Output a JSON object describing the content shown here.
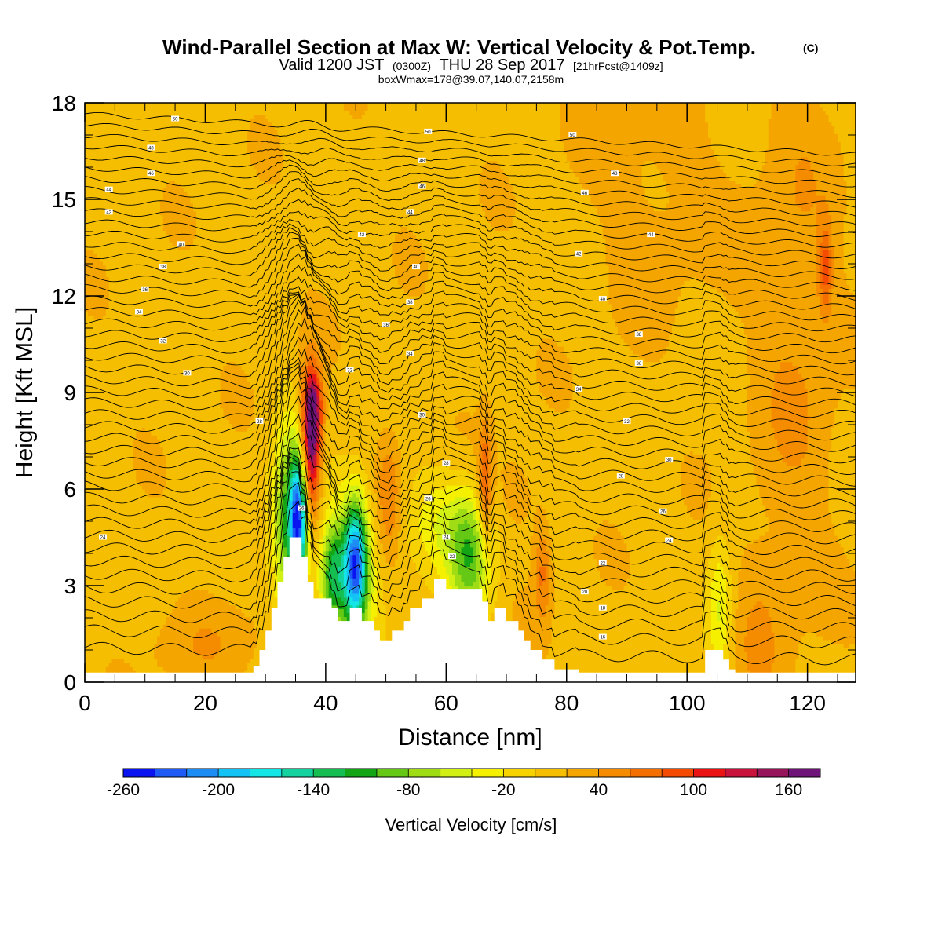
{
  "header": {
    "title": "Wind-Parallel Section at Max W: Vertical Velocity & Pot.Temp.",
    "copyright": "(C)",
    "valid_prefix": "Valid 1200 JST",
    "valid_utc": "(0300Z)",
    "valid_date": "THU 28 Sep 2017",
    "forecast_info": "[21hrFcst@1409z]",
    "box_info": "boxWmax=178@39.07,140.07,2158m"
  },
  "chart_data": {
    "type": "heatmap",
    "title": "Wind-Parallel Section at Max W: Vertical Velocity & Pot.Temp.",
    "xlabel": "Distance [nm]",
    "ylabel": "Height [Kft MSL]",
    "xlim": [
      0,
      128
    ],
    "ylim": [
      0,
      18
    ],
    "x_ticks": [
      0,
      20,
      40,
      60,
      80,
      100,
      120
    ],
    "y_ticks": [
      0,
      3,
      6,
      9,
      12,
      15,
      18
    ],
    "colorbar": {
      "title": "Vertical Velocity [cm/s]",
      "levels": [
        -260,
        -240,
        -220,
        -200,
        -180,
        -160,
        -140,
        -120,
        -100,
        -80,
        -60,
        -40,
        -20,
        0,
        20,
        40,
        60,
        80,
        100,
        120,
        140,
        160,
        180
      ],
      "tick_labels": [
        "-260",
        "-200",
        "-140",
        "-80",
        "-20",
        "40",
        "100",
        "160"
      ],
      "colors": [
        "#0a14f0",
        "#1e5af5",
        "#1e8cf5",
        "#14c3f5",
        "#14e6e6",
        "#14d2a0",
        "#14be50",
        "#14a514",
        "#64c814",
        "#a0dc14",
        "#d2f014",
        "#f5f000",
        "#f5d200",
        "#f5be00",
        "#f5a500",
        "#f58c00",
        "#f56e00",
        "#f54b00",
        "#eb1414",
        "#c8143c",
        "#96145a",
        "#6e1478"
      ]
    },
    "terrain_kft": [
      {
        "x": 0,
        "h": 0.3
      },
      {
        "x": 28,
        "h": 0.3
      },
      {
        "x": 28,
        "h": 0.5
      },
      {
        "x": 29,
        "h": 0.5
      },
      {
        "x": 29,
        "h": 1.0
      },
      {
        "x": 30,
        "h": 1.0
      },
      {
        "x": 30,
        "h": 1.6
      },
      {
        "x": 31,
        "h": 1.6
      },
      {
        "x": 31,
        "h": 2.3
      },
      {
        "x": 32,
        "h": 2.3
      },
      {
        "x": 32,
        "h": 3.1
      },
      {
        "x": 33,
        "h": 3.1
      },
      {
        "x": 33,
        "h": 3.9
      },
      {
        "x": 34,
        "h": 3.9
      },
      {
        "x": 34,
        "h": 4.5
      },
      {
        "x": 36,
        "h": 4.5
      },
      {
        "x": 36,
        "h": 3.9
      },
      {
        "x": 37,
        "h": 3.9
      },
      {
        "x": 37,
        "h": 3.1
      },
      {
        "x": 38,
        "h": 3.1
      },
      {
        "x": 38,
        "h": 2.6
      },
      {
        "x": 41,
        "h": 2.6
      },
      {
        "x": 41,
        "h": 2.3
      },
      {
        "x": 42,
        "h": 2.3
      },
      {
        "x": 42,
        "h": 1.9
      },
      {
        "x": 44,
        "h": 1.9
      },
      {
        "x": 44,
        "h": 2.3
      },
      {
        "x": 46,
        "h": 2.3
      },
      {
        "x": 46,
        "h": 1.9
      },
      {
        "x": 48,
        "h": 1.9
      },
      {
        "x": 48,
        "h": 1.6
      },
      {
        "x": 49,
        "h": 1.6
      },
      {
        "x": 49,
        "h": 1.3
      },
      {
        "x": 51,
        "h": 1.3
      },
      {
        "x": 51,
        "h": 1.6
      },
      {
        "x": 53,
        "h": 1.6
      },
      {
        "x": 53,
        "h": 1.9
      },
      {
        "x": 54,
        "h": 1.9
      },
      {
        "x": 54,
        "h": 2.3
      },
      {
        "x": 56,
        "h": 2.3
      },
      {
        "x": 56,
        "h": 2.6
      },
      {
        "x": 58,
        "h": 2.6
      },
      {
        "x": 58,
        "h": 3.2
      },
      {
        "x": 60,
        "h": 3.2
      },
      {
        "x": 60,
        "h": 2.9
      },
      {
        "x": 66,
        "h": 2.9
      },
      {
        "x": 66,
        "h": 2.5
      },
      {
        "x": 67,
        "h": 2.5
      },
      {
        "x": 67,
        "h": 1.9
      },
      {
        "x": 68,
        "h": 1.9
      },
      {
        "x": 68,
        "h": 2.3
      },
      {
        "x": 70,
        "h": 2.3
      },
      {
        "x": 70,
        "h": 1.9
      },
      {
        "x": 72,
        "h": 1.9
      },
      {
        "x": 72,
        "h": 1.6
      },
      {
        "x": 73,
        "h": 1.6
      },
      {
        "x": 73,
        "h": 1.3
      },
      {
        "x": 74,
        "h": 1.3
      },
      {
        "x": 74,
        "h": 1.0
      },
      {
        "x": 76,
        "h": 1.0
      },
      {
        "x": 76,
        "h": 0.7
      },
      {
        "x": 78,
        "h": 0.7
      },
      {
        "x": 78,
        "h": 0.4
      },
      {
        "x": 82,
        "h": 0.4
      },
      {
        "x": 82,
        "h": 0.3
      },
      {
        "x": 103,
        "h": 0.3
      },
      {
        "x": 103,
        "h": 1.0
      },
      {
        "x": 106,
        "h": 1.0
      },
      {
        "x": 106,
        "h": 0.7
      },
      {
        "x": 107,
        "h": 0.7
      },
      {
        "x": 107,
        "h": 0.4
      },
      {
        "x": 108,
        "h": 0.4
      },
      {
        "x": 108,
        "h": 0.3
      },
      {
        "x": 128,
        "h": 0.3
      }
    ],
    "field_features": [
      {
        "x": 37.5,
        "y": 7.3,
        "sx": 1.1,
        "sy": 1.6,
        "w": 160
      },
      {
        "x": 38.0,
        "y": 8.5,
        "sx": 1.0,
        "sy": 0.8,
        "w": 90
      },
      {
        "x": 35.5,
        "y": 5.0,
        "sx": 1.1,
        "sy": 1.4,
        "w": -230
      },
      {
        "x": 33.5,
        "y": 4.8,
        "sx": 1.8,
        "sy": 2.2,
        "w": -100
      },
      {
        "x": 45.0,
        "y": 3.7,
        "sx": 1.3,
        "sy": 1.3,
        "w": -170
      },
      {
        "x": 44.0,
        "y": 3.5,
        "sx": 2.8,
        "sy": 1.7,
        "w": -90
      },
      {
        "x": 41.0,
        "y": 3.3,
        "sx": 1.4,
        "sy": 1.1,
        "w": -90
      },
      {
        "x": 64.0,
        "y": 3.7,
        "sx": 2.5,
        "sy": 1.3,
        "w": -90
      },
      {
        "x": 60.0,
        "y": 5.0,
        "sx": 5.0,
        "sy": 1.1,
        "w": -45
      },
      {
        "x": 66.5,
        "y": 6.0,
        "sx": 0.8,
        "sy": 1.4,
        "w": 75
      },
      {
        "x": 50.5,
        "y": 5.8,
        "sx": 1.4,
        "sy": 1.4,
        "w": 45
      },
      {
        "x": 76.0,
        "y": 3.5,
        "sx": 1.0,
        "sy": 1.1,
        "w": 50
      },
      {
        "x": 105.5,
        "y": 2.2,
        "sx": 1.4,
        "sy": 1.6,
        "w": -55
      },
      {
        "x": 123.0,
        "y": 12.8,
        "sx": 0.8,
        "sy": 1.0,
        "w": 65
      },
      {
        "x": 118.0,
        "y": 11.0,
        "sx": 5.0,
        "sy": 6.0,
        "w": 28
      },
      {
        "x": 95.0,
        "y": 15.5,
        "sx": 8.0,
        "sy": 3.0,
        "w": 18
      },
      {
        "x": 20.0,
        "y": 1.2,
        "sx": 8.0,
        "sy": 0.9,
        "w": 20
      },
      {
        "x": 112.0,
        "y": 1.8,
        "sx": 3.0,
        "sy": 2.0,
        "w": 25
      },
      {
        "x": 72.0,
        "y": 5.8,
        "sx": 3.0,
        "sy": 1.0,
        "w": 22
      }
    ],
    "theta_contour_labels": [
      {
        "x": 15,
        "y": 17.5,
        "text": "50"
      },
      {
        "x": 57,
        "y": 17.1,
        "text": "50"
      },
      {
        "x": 81,
        "y": 17.0,
        "text": "50"
      },
      {
        "x": 11,
        "y": 16.6,
        "text": "48"
      },
      {
        "x": 56,
        "y": 16.2,
        "text": "48"
      },
      {
        "x": 88,
        "y": 15.8,
        "text": "48"
      },
      {
        "x": 11,
        "y": 15.8,
        "text": "46"
      },
      {
        "x": 56,
        "y": 15.4,
        "text": "46"
      },
      {
        "x": 83,
        "y": 15.2,
        "text": "46"
      },
      {
        "x": 4,
        "y": 15.3,
        "text": "44"
      },
      {
        "x": 54,
        "y": 14.6,
        "text": "44"
      },
      {
        "x": 94,
        "y": 13.9,
        "text": "44"
      },
      {
        "x": 4,
        "y": 14.6,
        "text": "42"
      },
      {
        "x": 46,
        "y": 13.9,
        "text": "42"
      },
      {
        "x": 82,
        "y": 13.3,
        "text": "42"
      },
      {
        "x": 16,
        "y": 13.6,
        "text": "40"
      },
      {
        "x": 55,
        "y": 12.9,
        "text": "40"
      },
      {
        "x": 86,
        "y": 11.9,
        "text": "40"
      },
      {
        "x": 13,
        "y": 12.9,
        "text": "38"
      },
      {
        "x": 54,
        "y": 11.8,
        "text": "38"
      },
      {
        "x": 92,
        "y": 10.8,
        "text": "38"
      },
      {
        "x": 10,
        "y": 12.2,
        "text": "36"
      },
      {
        "x": 50,
        "y": 11.1,
        "text": "36"
      },
      {
        "x": 92,
        "y": 9.9,
        "text": "36"
      },
      {
        "x": 9,
        "y": 11.5,
        "text": "34"
      },
      {
        "x": 54,
        "y": 10.2,
        "text": "34"
      },
      {
        "x": 82,
        "y": 9.1,
        "text": "34"
      },
      {
        "x": 13,
        "y": 10.6,
        "text": "32"
      },
      {
        "x": 44,
        "y": 9.7,
        "text": "32"
      },
      {
        "x": 90,
        "y": 8.1,
        "text": "32"
      },
      {
        "x": 17,
        "y": 9.6,
        "text": "30"
      },
      {
        "x": 56,
        "y": 8.3,
        "text": "30"
      },
      {
        "x": 97,
        "y": 6.9,
        "text": "30"
      },
      {
        "x": 29,
        "y": 8.1,
        "text": "28"
      },
      {
        "x": 60,
        "y": 6.8,
        "text": "28"
      },
      {
        "x": 89,
        "y": 6.4,
        "text": "28"
      },
      {
        "x": 57,
        "y": 5.7,
        "text": "26"
      },
      {
        "x": 96,
        "y": 5.3,
        "text": "26"
      },
      {
        "x": 3,
        "y": 4.5,
        "text": "24"
      },
      {
        "x": 60,
        "y": 4.5,
        "text": "24"
      },
      {
        "x": 97,
        "y": 4.4,
        "text": "24"
      },
      {
        "x": 61,
        "y": 3.9,
        "text": "22"
      },
      {
        "x": 86,
        "y": 3.7,
        "text": "22"
      },
      {
        "x": 83,
        "y": 2.8,
        "text": "20"
      },
      {
        "x": 86,
        "y": 2.3,
        "text": "18"
      },
      {
        "x": 86,
        "y": 1.4,
        "text": "16"
      },
      {
        "x": 36,
        "y": 5.4,
        "text": "26"
      }
    ]
  }
}
